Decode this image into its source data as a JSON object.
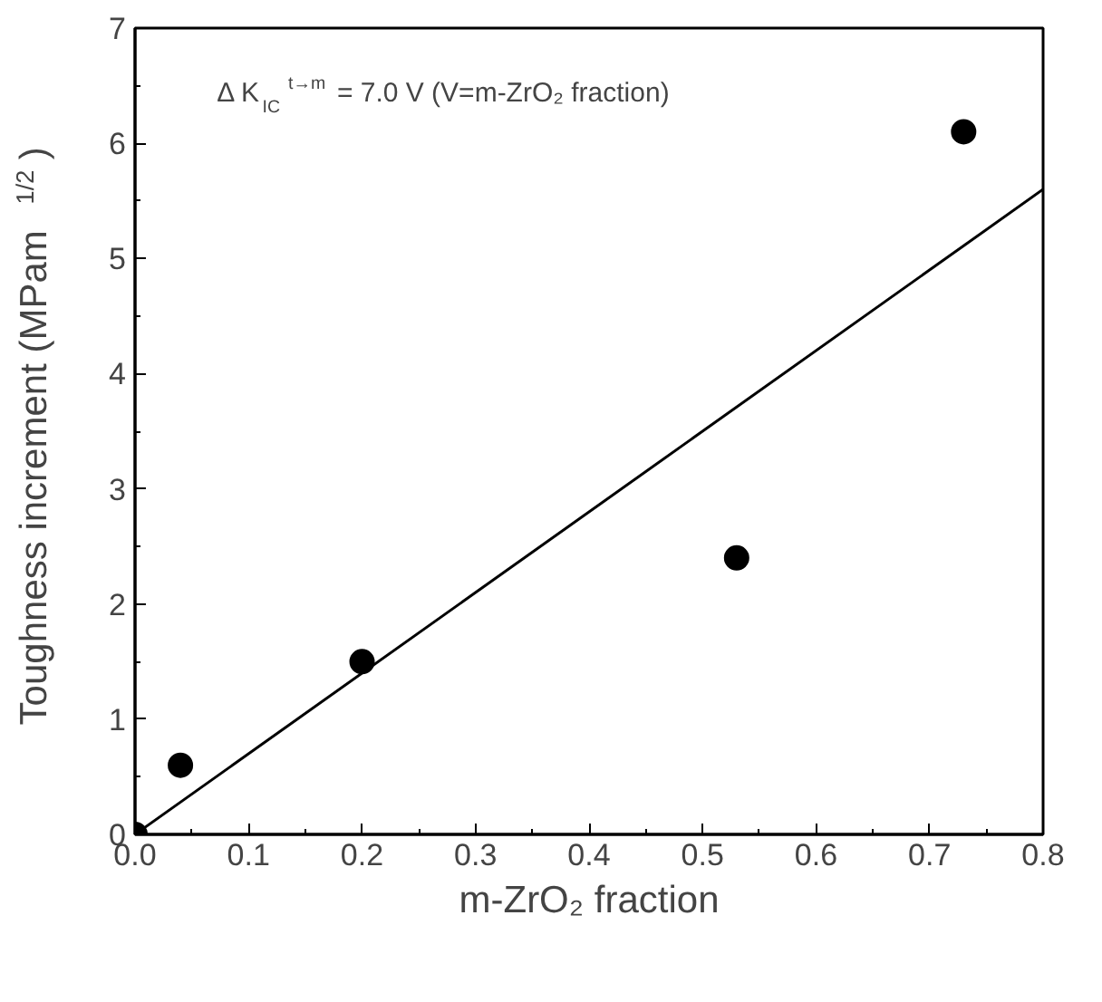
{
  "chart_data": {
    "type": "scatter",
    "xlabel": "m-ZrO₂ fraction",
    "ylabel": "Toughness increment (MPam$^{1/2}$)",
    "x": [
      0,
      0.04,
      0.2,
      0.53,
      0.73
    ],
    "series": [
      {
        "color": "#000000",
        "values": [
          0,
          0.6,
          1.5,
          2.4,
          6.1
        ],
        "marker": "circle"
      },
      {
        "type": "line",
        "color": "#000000",
        "x": [
          0,
          0.8
        ],
        "values": [
          0,
          5.6
        ],
        "marker": "none",
        "line_style": "solid"
      }
    ],
    "annotations": [
      "Δ K$_{IC}$$^{t→m}$ = 7.0 V (V=m-ZrO₂ fraction)"
    ],
    "xlim": [
      0,
      0.8
    ],
    "ylim": [
      0,
      7
    ],
    "xticks": [
      {
        "value": 0,
        "label": "0.0"
      },
      0.1,
      0.2,
      0.3,
      0.4,
      0.5,
      0.6,
      0.7,
      0.8
    ],
    "yticks": [
      0,
      1,
      2,
      3,
      4,
      5,
      6,
      7
    ],
    "grid": false
  }
}
